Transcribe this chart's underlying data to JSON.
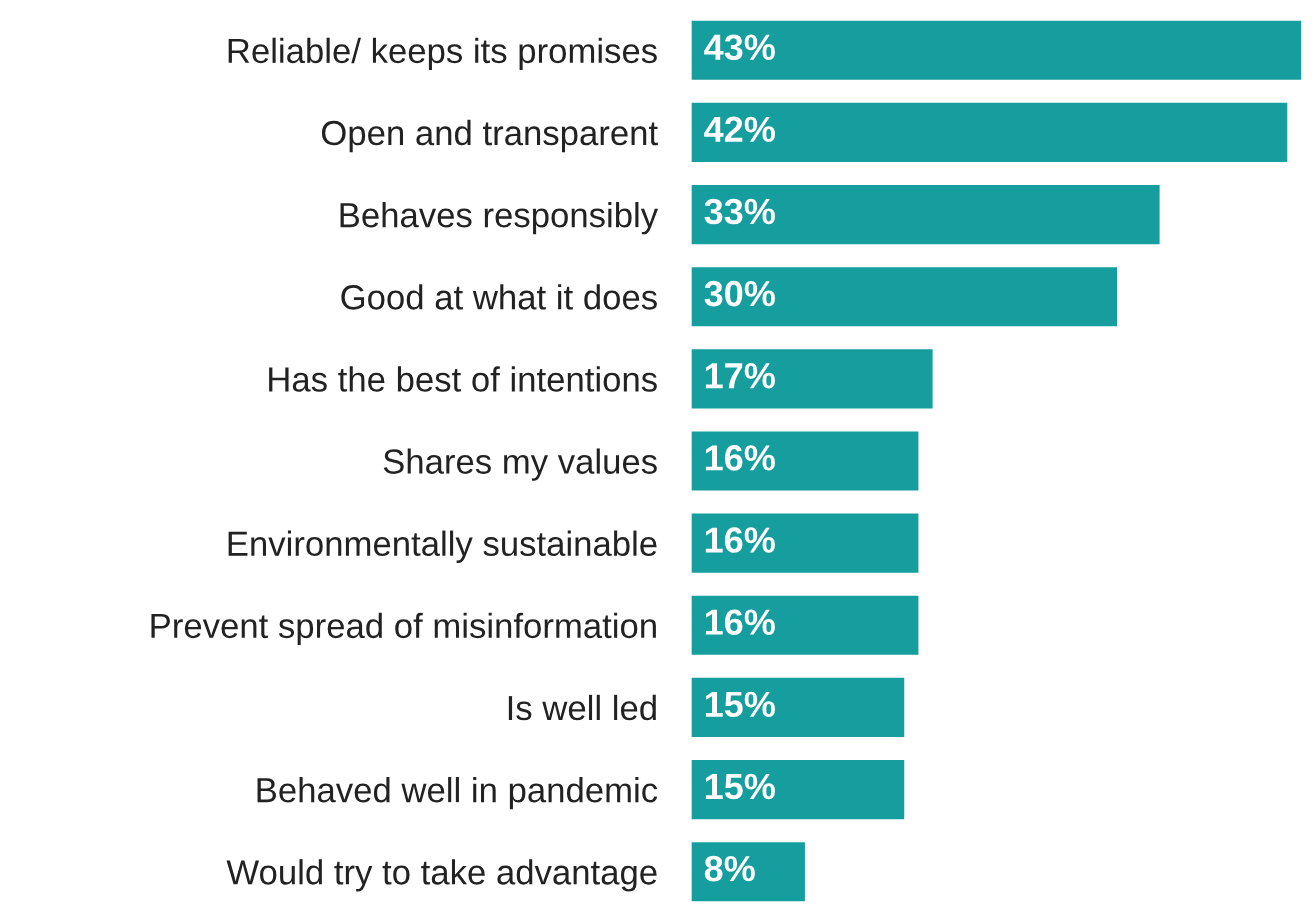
{
  "chart_data": {
    "type": "bar",
    "orientation": "horizontal",
    "categories": [
      "Reliable/ keeps its promises",
      "Open and transparent",
      "Behaves responsibly",
      "Good at what it does",
      "Has the best of intentions",
      "Shares my values",
      "Environmentally sustainable",
      "Prevent spread of misinformation",
      "Is well led",
      "Behaved well in pandemic",
      "Would try to take advantage"
    ],
    "values": [
      43,
      42,
      33,
      30,
      17,
      16,
      16,
      16,
      15,
      15,
      8
    ],
    "value_labels": [
      "43%",
      "42%",
      "33%",
      "30%",
      "17%",
      "16%",
      "16%",
      "16%",
      "15%",
      "15%",
      "8%"
    ],
    "color": "#169e9e",
    "grid": false,
    "legend": false
  }
}
